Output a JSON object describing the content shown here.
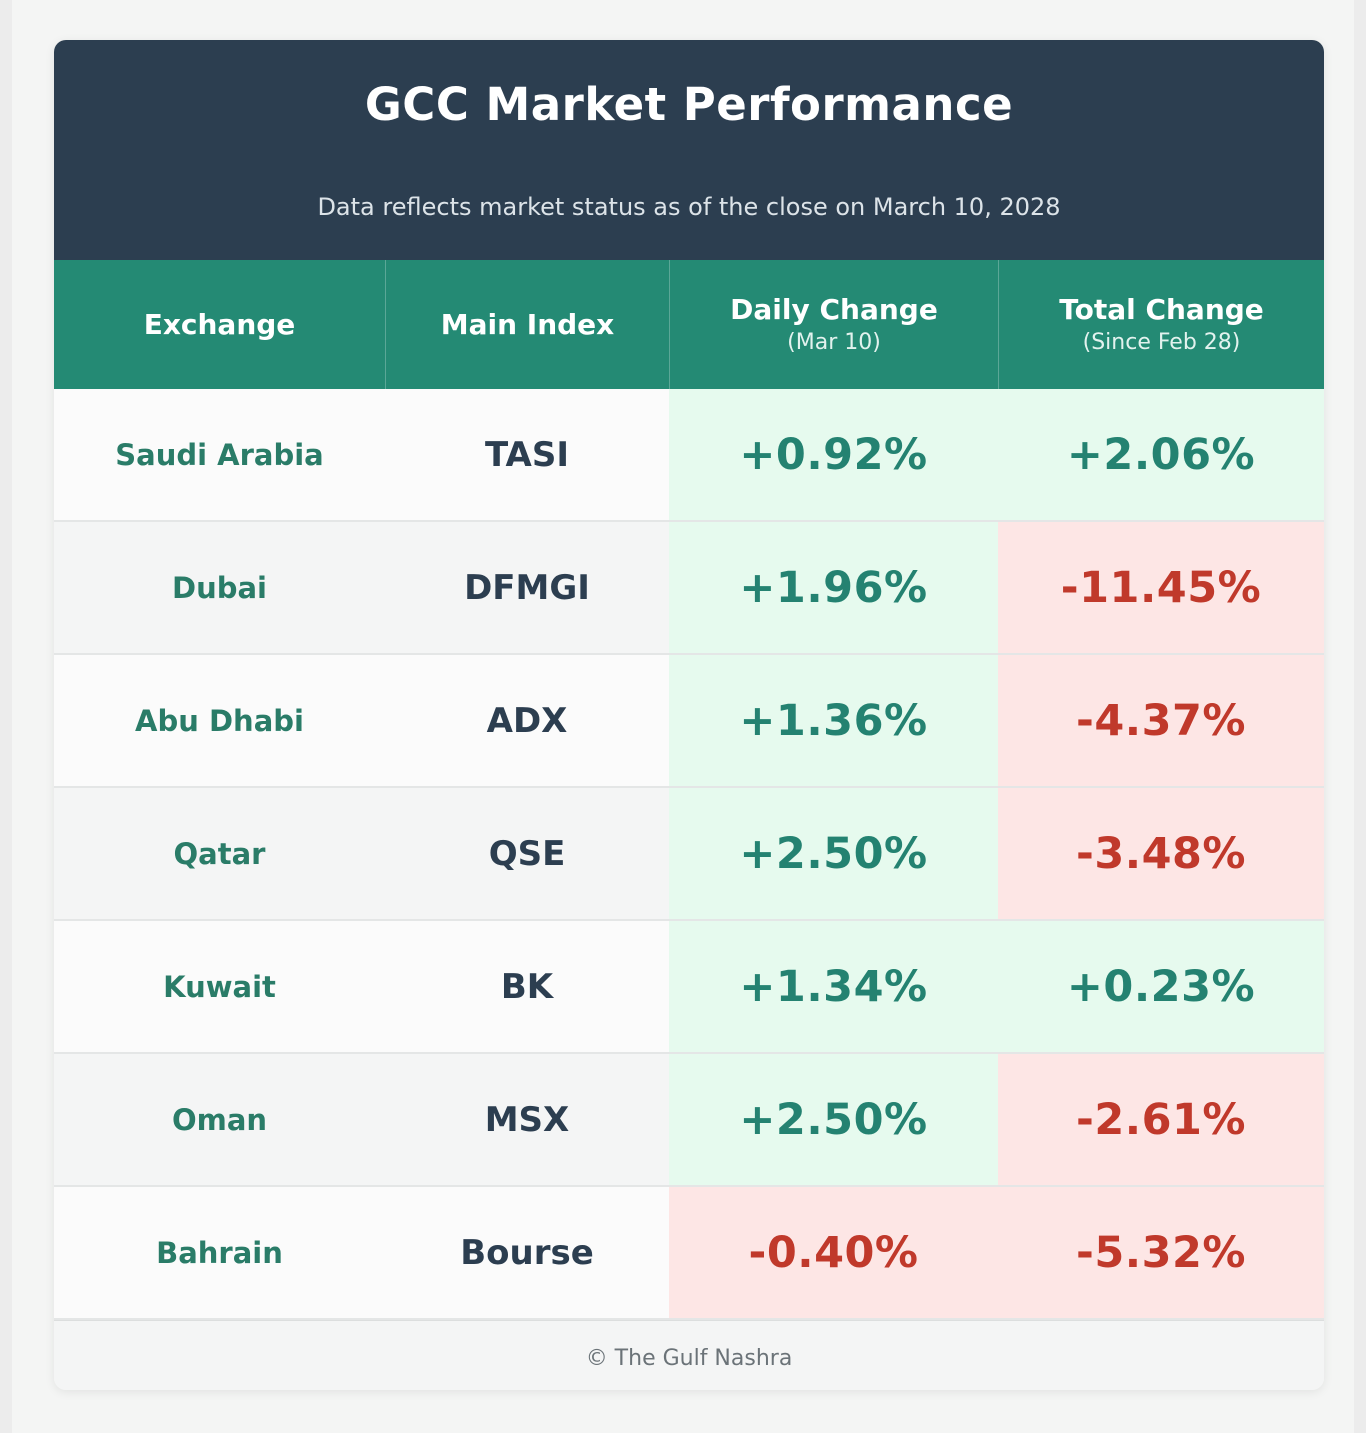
{
  "header": {
    "title": "GCC Market Performance",
    "subtitle": "Data reflects market status as of the close on March 10, 2028"
  },
  "columns": {
    "exchange": "Exchange",
    "index": "Main Index",
    "daily": "Daily Change",
    "daily_sub": "(Mar 10)",
    "total": "Total Change",
    "total_sub": "(Since Feb 28)"
  },
  "footer": "© The Gulf Nashra",
  "colors": {
    "header_bg": "#2c3e50",
    "column_header_bg": "#248a74",
    "positive_bg": "#e6faee",
    "positive_text": "#248271",
    "negative_bg": "#fde6e5",
    "negative_text": "#c0392b"
  },
  "chart_data": {
    "type": "table",
    "title": "GCC Market Performance",
    "columns": [
      "Exchange",
      "Main Index",
      "Daily Change (Mar 10)",
      "Total Change (Since Feb 28)"
    ],
    "rows": [
      {
        "exchange": "Saudi Arabia",
        "index": "TASI",
        "daily": "+0.92%",
        "total": "+2.06%"
      },
      {
        "exchange": "Dubai",
        "index": "DFMGI",
        "daily": "+1.96%",
        "total": "-11.45%"
      },
      {
        "exchange": "Abu Dhabi",
        "index": "ADX",
        "daily": "+1.36%",
        "total": "-4.37%"
      },
      {
        "exchange": "Qatar",
        "index": "QSE",
        "daily": "+2.50%",
        "total": "-3.48%"
      },
      {
        "exchange": "Kuwait",
        "index": "BK",
        "daily": "+1.34%",
        "total": "+0.23%"
      },
      {
        "exchange": "Oman",
        "index": "MSX",
        "daily": "+2.50%",
        "total": "-2.61%"
      },
      {
        "exchange": "Bahrain",
        "index": "Bourse",
        "daily": "-0.40%",
        "total": "-5.32%"
      }
    ]
  }
}
